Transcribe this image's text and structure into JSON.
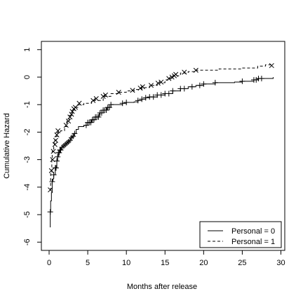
{
  "chart_data": {
    "type": "line",
    "title": "",
    "xlabel": "Months after release",
    "ylabel": "Cumulative Hazard",
    "xlim": [
      -1,
      30.5
    ],
    "ylim": [
      -6.3,
      1.3
    ],
    "x_ticks": [
      0,
      5,
      10,
      15,
      20,
      25,
      30
    ],
    "y_ticks": [
      -6,
      -5,
      -4,
      -3,
      -2,
      -1,
      0,
      1
    ],
    "grid": false,
    "legend_position": "bottom-right",
    "series": [
      {
        "name": "Personal = 0",
        "line": "solid",
        "marker": "+",
        "points": [
          [
            0.1,
            -5.45
          ],
          [
            0.15,
            -4.9
          ],
          [
            0.2,
            -4.5
          ],
          [
            0.3,
            -4.2
          ],
          [
            0.4,
            -3.8
          ],
          [
            0.5,
            -3.7
          ],
          [
            0.6,
            -3.55
          ],
          [
            0.8,
            -3.3
          ],
          [
            1.0,
            -3.05
          ],
          [
            1.1,
            -2.9
          ],
          [
            1.2,
            -2.75
          ],
          [
            1.4,
            -2.65
          ],
          [
            1.6,
            -2.55
          ],
          [
            1.8,
            -2.5
          ],
          [
            2.0,
            -2.45
          ],
          [
            2.2,
            -2.4
          ],
          [
            2.4,
            -2.35
          ],
          [
            2.6,
            -2.3
          ],
          [
            2.8,
            -2.2
          ],
          [
            3.0,
            -2.15
          ],
          [
            3.2,
            -2.05
          ],
          [
            3.5,
            -1.9
          ],
          [
            3.8,
            -1.8
          ],
          [
            4.5,
            -1.75
          ],
          [
            5.0,
            -1.65
          ],
          [
            5.5,
            -1.55
          ],
          [
            6.0,
            -1.45
          ],
          [
            6.5,
            -1.3
          ],
          [
            7.0,
            -1.2
          ],
          [
            7.5,
            -1.1
          ],
          [
            8.0,
            -1.0
          ],
          [
            9.5,
            -0.95
          ],
          [
            10.0,
            -0.92
          ],
          [
            11.0,
            -0.9
          ],
          [
            11.5,
            -0.85
          ],
          [
            12.0,
            -0.8
          ],
          [
            12.5,
            -0.75
          ],
          [
            13.0,
            -0.72
          ],
          [
            14.0,
            -0.65
          ],
          [
            15.0,
            -0.6
          ],
          [
            16.0,
            -0.5
          ],
          [
            17.0,
            -0.42
          ],
          [
            18.0,
            -0.35
          ],
          [
            19.0,
            -0.3
          ],
          [
            20.0,
            -0.25
          ],
          [
            21.5,
            -0.2
          ],
          [
            24.0,
            -0.18
          ],
          [
            25.0,
            -0.15
          ],
          [
            26.5,
            -0.1
          ],
          [
            27.0,
            -0.05
          ],
          [
            29.0,
            0.0
          ]
        ],
        "censor_x": [
          0.15,
          0.4,
          0.6,
          0.8,
          0.9,
          1.0,
          1.1,
          1.2,
          1.3,
          1.4,
          1.5,
          1.7,
          1.9,
          2.1,
          2.3,
          2.5,
          2.7,
          2.9,
          3.1,
          3.3,
          4.8,
          5.0,
          5.2,
          5.4,
          5.6,
          5.8,
          6.0,
          6.2,
          6.4,
          6.6,
          6.8,
          7.0,
          7.2,
          7.4,
          7.6,
          7.8,
          8.0,
          9.5,
          10.0,
          11.5,
          12.0,
          12.5,
          13.0,
          13.5,
          14.0,
          14.5,
          15.0,
          15.5,
          16.0,
          17.0,
          17.5,
          18.5,
          19.5,
          20.0,
          21.5,
          25.0,
          26.5,
          26.8,
          27.1,
          27.5
        ]
      },
      {
        "name": "Personal = 1",
        "line": "dashed",
        "marker": "x",
        "points": [
          [
            0.1,
            -4.1
          ],
          [
            0.2,
            -3.45
          ],
          [
            0.35,
            -3.0
          ],
          [
            0.4,
            -2.7
          ],
          [
            0.6,
            -2.5
          ],
          [
            0.7,
            -2.3
          ],
          [
            0.9,
            -2.15
          ],
          [
            1.1,
            -2.0
          ],
          [
            1.5,
            -1.95
          ],
          [
            2.0,
            -1.8
          ],
          [
            2.3,
            -1.6
          ],
          [
            2.6,
            -1.4
          ],
          [
            3.0,
            -1.2
          ],
          [
            3.3,
            -1.1
          ],
          [
            3.8,
            -1.0
          ],
          [
            4.5,
            -0.95
          ],
          [
            5.5,
            -0.85
          ],
          [
            7.0,
            -0.7
          ],
          [
            8.0,
            -0.6
          ],
          [
            9.0,
            -0.55
          ],
          [
            10.0,
            -0.5
          ],
          [
            11.0,
            -0.45
          ],
          [
            12.0,
            -0.38
          ],
          [
            13.0,
            -0.3
          ],
          [
            14.0,
            -0.2
          ],
          [
            15.0,
            -0.1
          ],
          [
            15.5,
            -0.05
          ],
          [
            16.0,
            0.05
          ],
          [
            17.0,
            0.15
          ],
          [
            18.0,
            0.2
          ],
          [
            19.0,
            0.25
          ],
          [
            22.0,
            0.3
          ],
          [
            25.0,
            0.33
          ],
          [
            27.0,
            0.4
          ],
          [
            28.0,
            0.45
          ],
          [
            29.0,
            0.45
          ]
        ],
        "marker_pts": [
          [
            0.15,
            -4.1
          ],
          [
            0.3,
            -3.4
          ],
          [
            0.45,
            -3.0
          ],
          [
            0.55,
            -2.7
          ],
          [
            0.75,
            -2.45
          ],
          [
            0.85,
            -2.3
          ],
          [
            1.0,
            -2.1
          ],
          [
            1.15,
            -1.95
          ],
          [
            2.2,
            -1.75
          ],
          [
            2.5,
            -1.6
          ],
          [
            2.7,
            -1.45
          ],
          [
            2.9,
            -1.35
          ],
          [
            3.0,
            -1.25
          ],
          [
            3.2,
            -1.15
          ],
          [
            3.4,
            -1.1
          ],
          [
            3.9,
            -0.95
          ],
          [
            5.7,
            -0.85
          ],
          [
            6.1,
            -0.78
          ],
          [
            7.0,
            -0.7
          ],
          [
            7.3,
            -0.65
          ],
          [
            9.0,
            -0.55
          ],
          [
            10.8,
            -0.48
          ],
          [
            11.8,
            -0.4
          ],
          [
            12.1,
            -0.35
          ],
          [
            13.2,
            -0.3
          ],
          [
            14.1,
            -0.22
          ],
          [
            14.5,
            -0.18
          ],
          [
            15.5,
            -0.05
          ],
          [
            15.9,
            0.0
          ],
          [
            16.2,
            0.05
          ],
          [
            16.4,
            0.1
          ],
          [
            17.5,
            0.18
          ],
          [
            19.0,
            0.25
          ],
          [
            28.8,
            0.42
          ]
        ]
      }
    ]
  }
}
